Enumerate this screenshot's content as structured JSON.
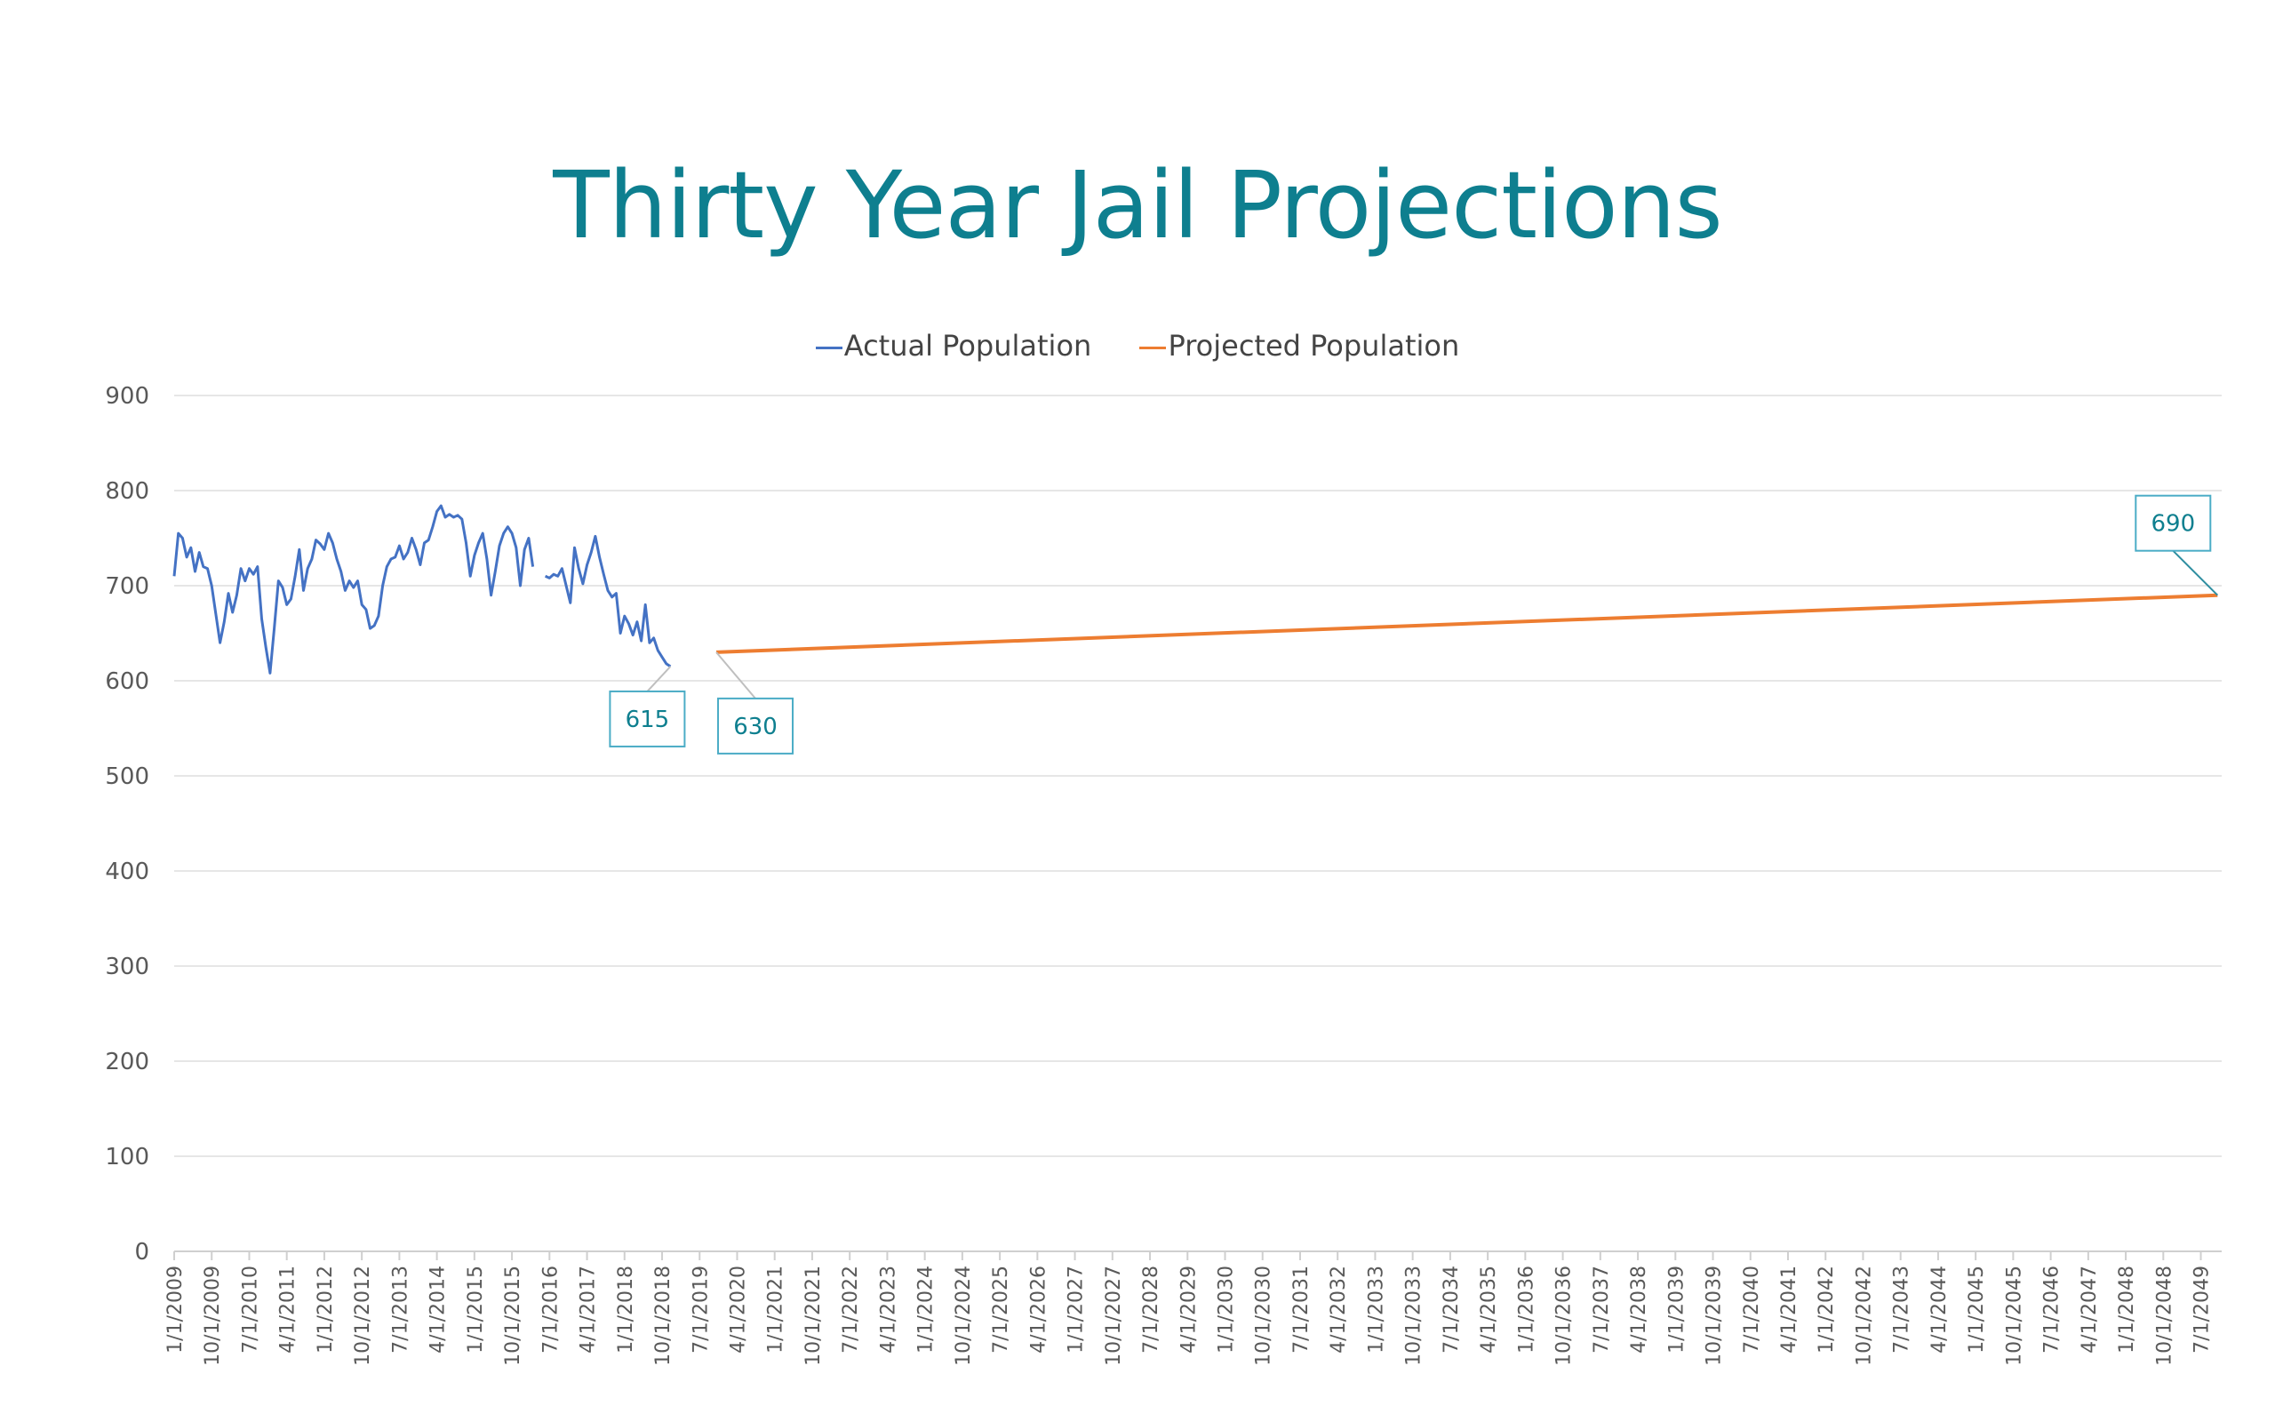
{
  "chart_data": {
    "type": "line",
    "title": "Thirty Year Jail Projections",
    "ylim": [
      0,
      900
    ],
    "yticks": [
      0,
      100,
      200,
      300,
      400,
      500,
      600,
      700,
      800,
      900
    ],
    "grid": true,
    "legend_placement": "top-center",
    "x_tick_labels": [
      "1/1/2009",
      "10/1/2009",
      "7/1/2010",
      "4/1/2011",
      "1/1/2012",
      "10/1/2012",
      "7/1/2013",
      "4/1/2014",
      "1/1/2015",
      "10/1/2015",
      "7/1/2016",
      "4/1/2017",
      "1/1/2018",
      "10/1/2018",
      "7/1/2019",
      "4/1/2020",
      "1/1/2021",
      "10/1/2021",
      "7/1/2022",
      "4/1/2023",
      "1/1/2024",
      "10/1/2024",
      "7/1/2025",
      "4/1/2026",
      "1/1/2027",
      "10/1/2027",
      "7/1/2028",
      "4/1/2029",
      "1/1/2030",
      "10/1/2030",
      "7/1/2031",
      "4/1/2032",
      "1/1/2033",
      "10/1/2033",
      "7/1/2034",
      "4/1/2035",
      "1/1/2036",
      "10/1/2036",
      "7/1/2037",
      "4/1/2038",
      "1/1/2039",
      "10/1/2039",
      "7/1/2040",
      "4/1/2041",
      "1/1/2042",
      "10/1/2042",
      "7/1/2043",
      "4/1/2044",
      "1/1/2045",
      "10/1/2045",
      "7/1/2046",
      "4/1/2047",
      "1/1/2048",
      "10/1/2048",
      "7/1/2049"
    ],
    "series": [
      {
        "name": "Actual Population",
        "color": "#4472c4",
        "points": [
          {
            "x": "2009-01",
            "y": 710
          },
          {
            "x": "2009-02",
            "y": 755
          },
          {
            "x": "2009-03",
            "y": 750
          },
          {
            "x": "2009-04",
            "y": 730
          },
          {
            "x": "2009-05",
            "y": 740
          },
          {
            "x": "2009-06",
            "y": 715
          },
          {
            "x": "2009-07",
            "y": 735
          },
          {
            "x": "2009-08",
            "y": 720
          },
          {
            "x": "2009-09",
            "y": 718
          },
          {
            "x": "2009-10",
            "y": 700
          },
          {
            "x": "2009-11",
            "y": 670
          },
          {
            "x": "2009-12",
            "y": 640
          },
          {
            "x": "2010-01",
            "y": 662
          },
          {
            "x": "2010-02",
            "y": 692
          },
          {
            "x": "2010-03",
            "y": 672
          },
          {
            "x": "2010-04",
            "y": 690
          },
          {
            "x": "2010-05",
            "y": 718
          },
          {
            "x": "2010-06",
            "y": 705
          },
          {
            "x": "2010-07",
            "y": 718
          },
          {
            "x": "2010-08",
            "y": 712
          },
          {
            "x": "2010-09",
            "y": 720
          },
          {
            "x": "2010-10",
            "y": 665
          },
          {
            "x": "2010-11",
            "y": 635
          },
          {
            "x": "2010-12",
            "y": 608
          },
          {
            "x": "2011-01",
            "y": 655
          },
          {
            "x": "2011-02",
            "y": 705
          },
          {
            "x": "2011-03",
            "y": 698
          },
          {
            "x": "2011-04",
            "y": 680
          },
          {
            "x": "2011-05",
            "y": 686
          },
          {
            "x": "2011-06",
            "y": 710
          },
          {
            "x": "2011-07",
            "y": 738
          },
          {
            "x": "2011-08",
            "y": 695
          },
          {
            "x": "2011-09",
            "y": 718
          },
          {
            "x": "2011-10",
            "y": 728
          },
          {
            "x": "2011-11",
            "y": 748
          },
          {
            "x": "2011-12",
            "y": 744
          },
          {
            "x": "2012-01",
            "y": 738
          },
          {
            "x": "2012-02",
            "y": 755
          },
          {
            "x": "2012-03",
            "y": 745
          },
          {
            "x": "2012-04",
            "y": 728
          },
          {
            "x": "2012-05",
            "y": 715
          },
          {
            "x": "2012-06",
            "y": 695
          },
          {
            "x": "2012-07",
            "y": 705
          },
          {
            "x": "2012-08",
            "y": 698
          },
          {
            "x": "2012-09",
            "y": 705
          },
          {
            "x": "2012-10",
            "y": 680
          },
          {
            "x": "2012-11",
            "y": 675
          },
          {
            "x": "2012-12",
            "y": 655
          },
          {
            "x": "2013-01",
            "y": 658
          },
          {
            "x": "2013-02",
            "y": 668
          },
          {
            "x": "2013-03",
            "y": 700
          },
          {
            "x": "2013-04",
            "y": 720
          },
          {
            "x": "2013-05",
            "y": 728
          },
          {
            "x": "2013-06",
            "y": 730
          },
          {
            "x": "2013-07",
            "y": 742
          },
          {
            "x": "2013-08",
            "y": 728
          },
          {
            "x": "2013-09",
            "y": 735
          },
          {
            "x": "2013-10",
            "y": 750
          },
          {
            "x": "2013-11",
            "y": 738
          },
          {
            "x": "2013-12",
            "y": 722
          },
          {
            "x": "2014-01",
            "y": 745
          },
          {
            "x": "2014-02",
            "y": 748
          },
          {
            "x": "2014-03",
            "y": 762
          },
          {
            "x": "2014-04",
            "y": 778
          },
          {
            "x": "2014-05",
            "y": 784
          },
          {
            "x": "2014-06",
            "y": 772
          },
          {
            "x": "2014-07",
            "y": 775
          },
          {
            "x": "2014-08",
            "y": 772
          },
          {
            "x": "2014-09",
            "y": 774
          },
          {
            "x": "2014-10",
            "y": 770
          },
          {
            "x": "2014-11",
            "y": 745
          },
          {
            "x": "2014-12",
            "y": 710
          },
          {
            "x": "2015-01",
            "y": 732
          },
          {
            "x": "2015-02",
            "y": 745
          },
          {
            "x": "2015-03",
            "y": 755
          },
          {
            "x": "2015-04",
            "y": 728
          },
          {
            "x": "2015-05",
            "y": 690
          },
          {
            "x": "2015-06",
            "y": 715
          },
          {
            "x": "2015-07",
            "y": 742
          },
          {
            "x": "2015-08",
            "y": 755
          },
          {
            "x": "2015-09",
            "y": 762
          },
          {
            "x": "2015-10",
            "y": 755
          },
          {
            "x": "2015-11",
            "y": 740
          },
          {
            "x": "2015-12",
            "y": 700
          },
          {
            "x": "2016-01",
            "y": 738
          },
          {
            "x": "2016-02",
            "y": 750
          },
          {
            "x": "2016-03",
            "y": 720
          },
          {
            "x": "2016-04",
            "y": null
          },
          {
            "x": "2016-05",
            "y": null
          },
          {
            "x": "2016-06",
            "y": 710
          },
          {
            "x": "2016-07",
            "y": 708
          },
          {
            "x": "2016-08",
            "y": 712
          },
          {
            "x": "2016-09",
            "y": 710
          },
          {
            "x": "2016-10",
            "y": 718
          },
          {
            "x": "2016-11",
            "y": 700
          },
          {
            "x": "2016-12",
            "y": 682
          },
          {
            "x": "2017-01",
            "y": 740
          },
          {
            "x": "2017-02",
            "y": 718
          },
          {
            "x": "2017-03",
            "y": 702
          },
          {
            "x": "2017-04",
            "y": 722
          },
          {
            "x": "2017-05",
            "y": 735
          },
          {
            "x": "2017-06",
            "y": 752
          },
          {
            "x": "2017-07",
            "y": 730
          },
          {
            "x": "2017-08",
            "y": 712
          },
          {
            "x": "2017-09",
            "y": 695
          },
          {
            "x": "2017-10",
            "y": 688
          },
          {
            "x": "2017-11",
            "y": 692
          },
          {
            "x": "2017-12",
            "y": 650
          },
          {
            "x": "2018-01",
            "y": 668
          },
          {
            "x": "2018-02",
            "y": 660
          },
          {
            "x": "2018-03",
            "y": 648
          },
          {
            "x": "2018-04",
            "y": 662
          },
          {
            "x": "2018-05",
            "y": 642
          },
          {
            "x": "2018-06",
            "y": 680
          },
          {
            "x": "2018-07",
            "y": 640
          },
          {
            "x": "2018-08",
            "y": 645
          },
          {
            "x": "2018-09",
            "y": 632
          },
          {
            "x": "2018-10",
            "y": 625
          },
          {
            "x": "2018-11",
            "y": 618
          },
          {
            "x": "2018-12",
            "y": 615
          }
        ]
      },
      {
        "name": "Projected Population",
        "color": "#ed7d31",
        "points": [
          {
            "x": "2019-11",
            "y": 630
          },
          {
            "x": "2049-11",
            "y": 690
          }
        ]
      }
    ],
    "data_labels": [
      {
        "series": "Actual Population",
        "x": "2018-12",
        "y": 615,
        "text": "615"
      },
      {
        "series": "Projected Population",
        "x": "2019-11",
        "y": 630,
        "text": "630"
      },
      {
        "series": "Projected Population",
        "x": "2049-11",
        "y": 690,
        "text": "690"
      }
    ]
  }
}
